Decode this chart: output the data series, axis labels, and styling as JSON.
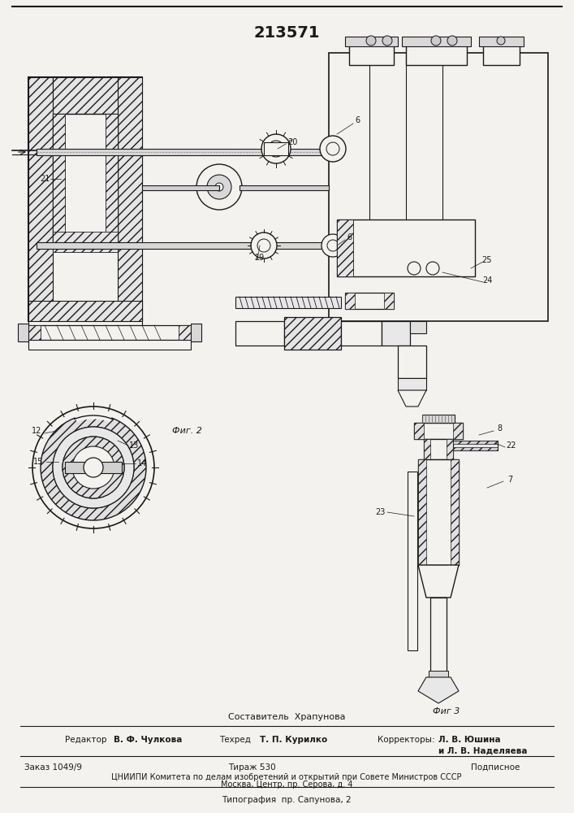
{
  "patent_number": "213571",
  "background_color": "#f4f2ee",
  "fig_width": 7.07,
  "fig_height": 10.0,
  "dpi": 100,
  "bottom_section": {
    "sestavitel_text": "Составитель  Храпунова",
    "editor_label": "Редактор",
    "editor_name": "В. Ф. Чулкова",
    "tehred_label": "Техред",
    "tehred_name": "Т. П. Курилко",
    "korrektory_label": "Корректоры:",
    "korrektory_name1": "Л. В. Юшина",
    "korrektory_name2": "и Л. В. Наделяева",
    "zakaz_text": "Заказ 1049/9",
    "tirazh_text": "Тираж 530",
    "podpisnoe_text": "Подписное",
    "tsniimpi_text": "ЦНИИПИ Комитета по делам изобретений и открытий при Совете Министров СССР",
    "moskva_text": "Москва, Центр, пр. Серова, д. 4",
    "tipografia_text": "Типография  пр. Сапунова, 2"
  },
  "fig2_label": "Фиг. 2",
  "fig3_label": "Фиг 3",
  "line_color": "#1a1a1a",
  "hatch_color": "#333333"
}
